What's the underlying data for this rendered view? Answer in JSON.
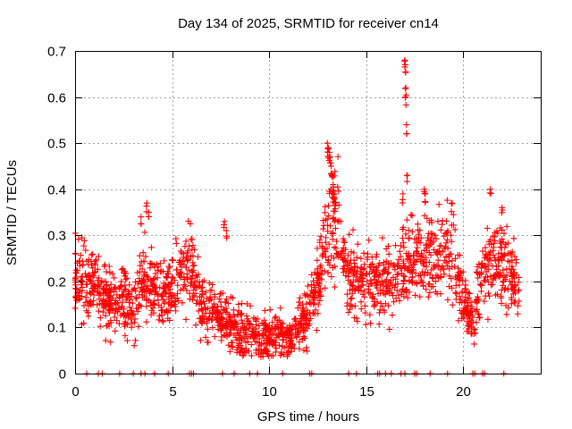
{
  "chart_data": {
    "type": "scatter",
    "title": "Day 134 of 2025, SRMTID for receiver cn14",
    "xlabel": "GPS time / hours",
    "ylabel": "SRMTID / TECUs",
    "xlim": [
      0,
      24
    ],
    "ylim": [
      0,
      0.7
    ],
    "xticks": [
      0,
      5,
      10,
      15,
      20
    ],
    "yticks": [
      0,
      0.1,
      0.2,
      0.3,
      0.4,
      0.5,
      0.6,
      0.7
    ],
    "xtick_labels": [
      "0",
      "5",
      "10",
      "15",
      "20"
    ],
    "ytick_labels": [
      "0",
      "0.1",
      "0.2",
      "0.3",
      "0.4",
      "0.5",
      "0.6",
      "0.7"
    ],
    "grid": true,
    "marker": "+",
    "marker_color": "#ff0000",
    "series": [
      {
        "name": "SRMTID",
        "trend_hours": [
          0,
          0.5,
          1,
          1.5,
          2,
          2.5,
          3,
          3.5,
          4,
          4.5,
          5,
          5.5,
          6,
          6.5,
          7,
          7.5,
          8,
          8.5,
          9,
          9.5,
          10,
          10.5,
          11,
          11.5,
          12,
          12.5,
          13,
          13.5,
          14,
          14.5,
          15,
          15.5,
          16,
          16.5,
          17,
          17.5,
          18,
          18.5,
          19,
          19.5,
          20,
          20.5,
          21,
          21.5,
          22,
          22.5,
          23
        ],
        "trend_values": [
          0.2,
          0.21,
          0.2,
          0.16,
          0.15,
          0.17,
          0.13,
          0.2,
          0.19,
          0.17,
          0.19,
          0.22,
          0.23,
          0.15,
          0.14,
          0.12,
          0.1,
          0.08,
          0.09,
          0.07,
          0.08,
          0.09,
          0.08,
          0.1,
          0.14,
          0.2,
          0.3,
          0.35,
          0.22,
          0.2,
          0.19,
          0.19,
          0.2,
          0.21,
          0.24,
          0.25,
          0.24,
          0.25,
          0.27,
          0.26,
          0.15,
          0.12,
          0.23,
          0.24,
          0.24,
          0.21,
          0.2
        ],
        "spikes": [
          {
            "x": 3.4,
            "y": 0.34
          },
          {
            "x": 3.7,
            "y": 0.37
          },
          {
            "x": 3.8,
            "y": 0.35
          },
          {
            "x": 7.7,
            "y": 0.33
          },
          {
            "x": 7.8,
            "y": 0.31
          },
          {
            "x": 13.0,
            "y": 0.5
          },
          {
            "x": 13.05,
            "y": 0.49
          },
          {
            "x": 13.1,
            "y": 0.48
          },
          {
            "x": 13.15,
            "y": 0.47
          },
          {
            "x": 13.2,
            "y": 0.45
          },
          {
            "x": 13.25,
            "y": 0.43
          },
          {
            "x": 13.3,
            "y": 0.41
          },
          {
            "x": 13.35,
            "y": 0.39
          },
          {
            "x": 13.4,
            "y": 0.37
          },
          {
            "x": 17.0,
            "y": 0.68
          },
          {
            "x": 17.02,
            "y": 0.67
          },
          {
            "x": 17.05,
            "y": 0.62
          },
          {
            "x": 17.03,
            "y": 0.6
          },
          {
            "x": 17.08,
            "y": 0.54
          },
          {
            "x": 17.1,
            "y": 0.43
          },
          {
            "x": 16.9,
            "y": 0.39
          },
          {
            "x": 18.0,
            "y": 0.4
          },
          {
            "x": 18.05,
            "y": 0.39
          },
          {
            "x": 19.4,
            "y": 0.37
          },
          {
            "x": 21.4,
            "y": 0.4
          },
          {
            "x": 22.0,
            "y": 0.36
          }
        ],
        "zero_points": [
          0.6,
          1.2,
          1.4,
          2.3,
          3.0,
          3.4,
          3.6,
          4.1,
          4.8,
          5.9,
          6.0,
          6.1,
          7.6,
          8.2,
          9.0,
          9.4,
          10.7,
          12.1,
          12.2,
          14.1,
          14.5,
          15.6,
          15.7,
          16.0,
          16.3,
          16.8,
          17.0,
          17.5,
          17.6,
          18.3,
          19.2,
          20.5,
          20.6,
          21.0,
          21.1,
          22.1
        ]
      }
    ]
  }
}
